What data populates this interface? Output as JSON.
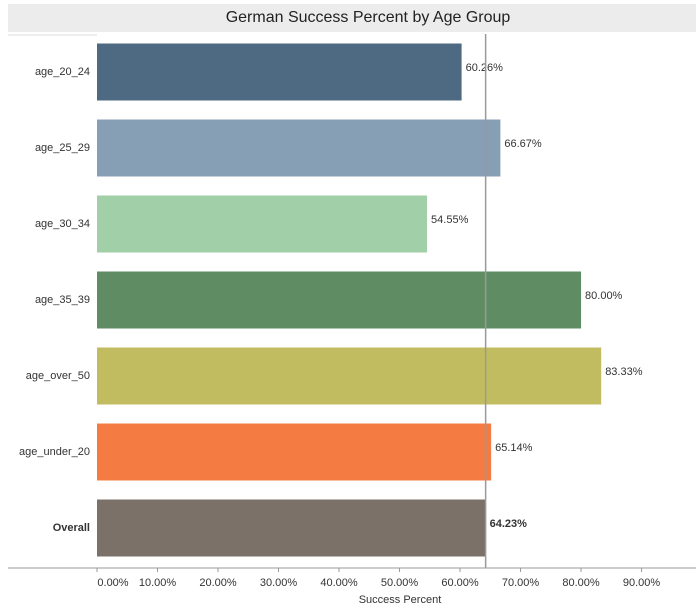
{
  "chart_data": {
    "type": "bar",
    "orientation": "horizontal",
    "title": "German Success Percent by Age Group",
    "categories": [
      "age_20_24",
      "age_25_29",
      "age_30_34",
      "age_35_39",
      "age_over_50",
      "age_under_20",
      "Overall"
    ],
    "values": [
      60.26,
      66.67,
      54.55,
      80.0,
      83.33,
      65.14,
      64.23
    ],
    "value_labels": [
      "60.26%",
      "66.67%",
      "54.55%",
      "80.00%",
      "83.33%",
      "65.14%",
      "64.23%"
    ],
    "colors": [
      "#4e6a83",
      "#879fb5",
      "#a1cfa7",
      "#5f8c62",
      "#c1bc5f",
      "#f47c42",
      "#7c7168"
    ],
    "x_label": "Success Percent",
    "xlim": [
      0,
      99
    ],
    "xticks": [
      {
        "value": 0,
        "label": "0.00%"
      },
      {
        "value": 10,
        "label": "10.00%"
      },
      {
        "value": 20,
        "label": "20.00%"
      },
      {
        "value": 30,
        "label": "30.00%"
      },
      {
        "value": 40,
        "label": "40.00%"
      },
      {
        "value": 50,
        "label": "50.00%"
      },
      {
        "value": 60,
        "label": "60.00%"
      },
      {
        "value": 70,
        "label": "70.00%"
      },
      {
        "value": 80,
        "label": "80.00%"
      },
      {
        "value": 90,
        "label": "90.00%"
      }
    ]
  }
}
